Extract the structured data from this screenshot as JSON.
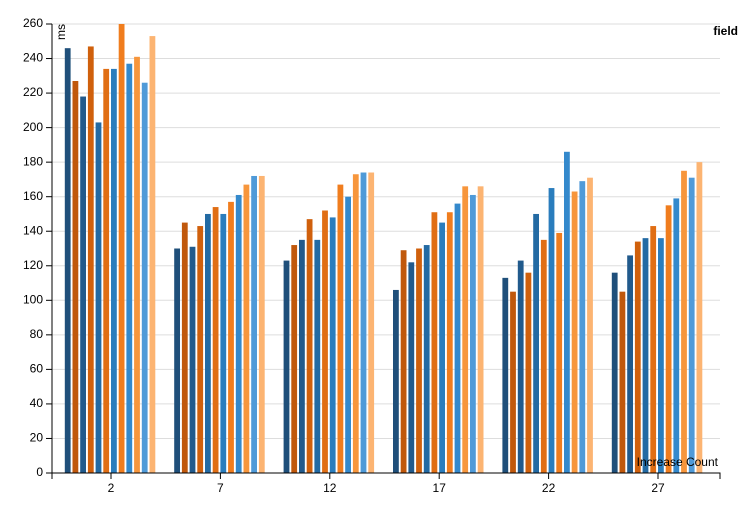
{
  "chart_data": {
    "type": "bar",
    "y_label": "ms",
    "x_label": "Increase Count",
    "legend_title": "field",
    "categories": [
      "2",
      "7",
      "12",
      "17",
      "22",
      "27"
    ],
    "series": [
      {
        "color": "#1f4f7a",
        "values": [
          246,
          130,
          123,
          106,
          113,
          116
        ]
      },
      {
        "color": "#c0580c",
        "values": [
          227,
          145,
          132,
          129,
          105,
          105
        ]
      },
      {
        "color": "#215a8c",
        "values": [
          218,
          131,
          135,
          122,
          123,
          126
        ]
      },
      {
        "color": "#d0600c",
        "values": [
          247,
          143,
          147,
          130,
          116,
          134
        ]
      },
      {
        "color": "#236aa3",
        "values": [
          203,
          150,
          135,
          132,
          150,
          136
        ]
      },
      {
        "color": "#e06e14",
        "values": [
          234,
          154,
          152,
          151,
          135,
          143
        ]
      },
      {
        "color": "#2a7dbd",
        "values": [
          234,
          150,
          148,
          145,
          165,
          136
        ]
      },
      {
        "color": "#f07d1e",
        "values": [
          260,
          157,
          167,
          151,
          139,
          155
        ]
      },
      {
        "color": "#3489cc",
        "values": [
          237,
          161,
          160,
          156,
          186,
          159
        ]
      },
      {
        "color": "#f7963c",
        "values": [
          241,
          167,
          173,
          166,
          163,
          175
        ]
      },
      {
        "color": "#4f9ad8",
        "values": [
          226,
          172,
          174,
          161,
          169,
          171
        ]
      },
      {
        "color": "#fcb472",
        "values": [
          253,
          172,
          174,
          166,
          171,
          180
        ]
      }
    ],
    "ylim": [
      0,
      260
    ],
    "yticks": [
      0,
      20,
      40,
      60,
      80,
      100,
      120,
      140,
      160,
      180,
      200,
      220,
      240,
      260
    ],
    "grid": true
  }
}
